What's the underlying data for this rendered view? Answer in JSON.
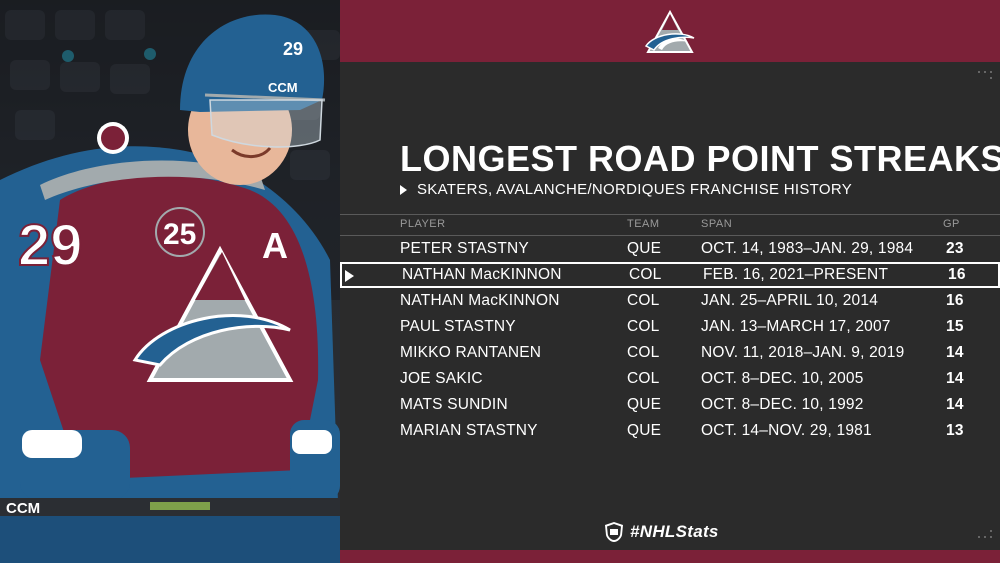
{
  "graphic": {
    "title": "LONGEST ROAD POINT STREAKS",
    "subtitle": "SKATERS, AVALANCHE/NORDIQUES FRANCHISE HISTORY",
    "hashtag": "#NHLStats"
  },
  "table": {
    "headers": {
      "player": "PLAYER",
      "team": "TEAM",
      "span": "SPAN",
      "gp": "GP"
    },
    "rows": [
      {
        "player": "PETER STASTNY",
        "team": "QUE",
        "span": "OCT. 14, 1983–JAN. 29, 1984",
        "gp": "23"
      },
      {
        "player": "NATHAN MacKINNON",
        "team": "COL",
        "span": "FEB. 16, 2021–PRESENT",
        "gp": "16"
      },
      {
        "player": "NATHAN MacKINNON",
        "team": "COL",
        "span": "JAN. 25–APRIL 10, 2014",
        "gp": "16"
      },
      {
        "player": "PAUL STASTNY",
        "team": "COL",
        "span": "JAN. 13–MARCH 17, 2007",
        "gp": "15"
      },
      {
        "player": "MIKKO RANTANEN",
        "team": "COL",
        "span": "NOV. 11, 2018–JAN. 9, 2019",
        "gp": "14"
      },
      {
        "player": "JOE SAKIC",
        "team": "COL",
        "span": "OCT. 8–DEC. 10, 2005",
        "gp": "14"
      },
      {
        "player": "MATS SUNDIN",
        "team": "QUE",
        "span": "OCT. 8–DEC. 10, 1992",
        "gp": "14"
      },
      {
        "player": "MARIAN STASTNY",
        "team": "QUE",
        "span": "OCT. 14–NOV. 29, 1981",
        "gp": "13"
      }
    ],
    "highlighted_row": 1
  },
  "photo": {
    "jersey_number": "29",
    "patch": "25",
    "letter": "A",
    "helmet_brand": "CCM",
    "stick_brand": "CCM"
  },
  "colors": {
    "burgundy": "#7b2138",
    "panel": "#2b2b2b",
    "blue": "#236192",
    "silver": "#a2aaad",
    "text": "#ffffff"
  },
  "icons": {
    "team_logo": "avalanche-logo-icon",
    "league_logo": "nhl-shield-icon",
    "highlight": "triangle-right-icon",
    "subtitle_bullet": "triangle-right-icon"
  }
}
